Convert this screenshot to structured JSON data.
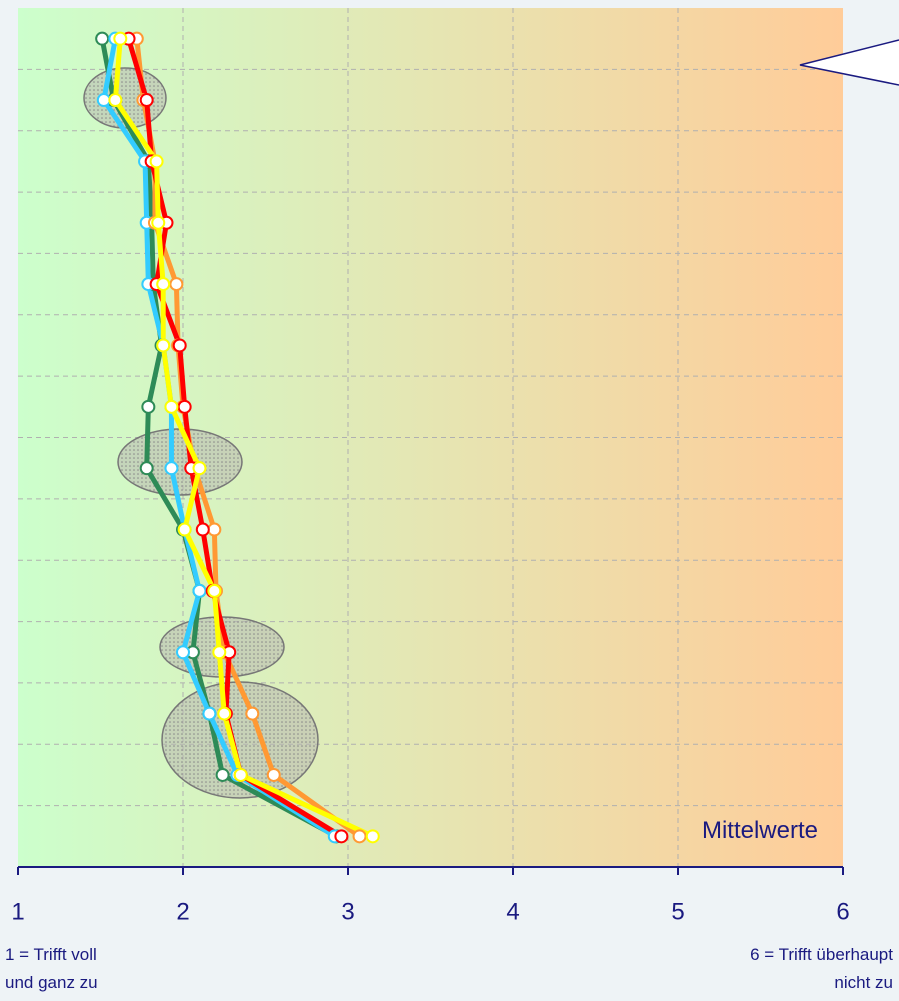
{
  "chart_data": {
    "type": "line",
    "annotation": "Mittelwerte",
    "x_label_left": [
      "1 = Trifft voll",
      "und ganz zu"
    ],
    "x_label_right": [
      "6 = Trifft überhaupt",
      "nicht zu"
    ],
    "categories": [
      null,
      null,
      null,
      null,
      null,
      null,
      null,
      null,
      null,
      null,
      null,
      null,
      null,
      null
    ],
    "xlim": [
      1,
      6
    ],
    "xticks": [
      1,
      2,
      3,
      4,
      5,
      6
    ],
    "grid": true,
    "series": [
      {
        "color": "#2e8b57",
        "values": [
          1.51,
          1.58,
          1.79,
          1.81,
          1.82,
          1.87,
          1.79,
          1.78,
          2.0,
          2.1,
          2.06,
          2.16,
          2.24,
          2.93
        ]
      },
      {
        "color": "#33ccff",
        "values": [
          1.59,
          1.52,
          1.77,
          1.78,
          1.79,
          1.88,
          1.93,
          1.93,
          2.01,
          2.1,
          2.0,
          2.16,
          2.33,
          2.92
        ]
      },
      {
        "color": "#ff9933",
        "values": [
          1.72,
          1.76,
          1.83,
          1.83,
          1.96,
          1.97,
          2.0,
          2.07,
          2.19,
          2.2,
          2.25,
          2.42,
          2.55,
          3.07
        ]
      },
      {
        "color": "#ff0000",
        "values": [
          1.67,
          1.78,
          1.81,
          1.9,
          1.84,
          1.98,
          2.01,
          2.05,
          2.12,
          2.18,
          2.28,
          2.26,
          2.35,
          2.96
        ]
      },
      {
        "color": "#ffff00",
        "values": [
          1.62,
          1.59,
          1.84,
          1.85,
          1.88,
          1.88,
          1.93,
          2.1,
          2.01,
          2.19,
          2.22,
          2.25,
          2.35,
          3.15
        ]
      }
    ]
  }
}
